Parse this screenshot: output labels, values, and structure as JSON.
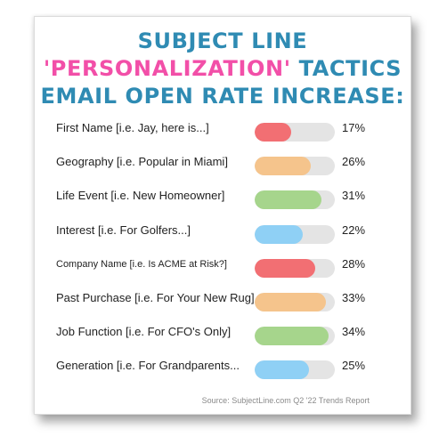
{
  "header": {
    "line1": "SUBJECT LINE",
    "line2_highlight": "'PERSONALIZATION'",
    "line2_rest": " TACTICS",
    "line3": "EMAIL OPEN RATE INCREASE:"
  },
  "source": "Source: SubjectLine.com Q2 '22 Trends Report",
  "colors": {
    "title": "#2f8bb3",
    "highlight": "#f24fa8",
    "track": "#e4e4e4"
  },
  "chart_data": {
    "type": "bar",
    "orientation": "horizontal",
    "title": "SUBJECT LINE 'PERSONALIZATION' TACTICS EMAIL OPEN RATE INCREASE:",
    "categories": [
      "First Name [i.e. Jay, here is...]",
      "Geography [i.e. Popular in Miami]",
      "Life Event [i.e. New Homeowner]",
      "Interest [i.e. For Golfers...]",
      "Company Name [i.e. Is ACME at Risk?]",
      "Past Purchase [i.e. For Your New Rug]",
      "Job Function [i.e. For CFO's Only]",
      "Generation [i.e. For Grandparents..."
    ],
    "values": [
      17,
      26,
      31,
      22,
      28,
      33,
      34,
      25
    ],
    "labels": [
      "17%",
      "26%",
      "31%",
      "22%",
      "28%",
      "33%",
      "34%",
      "25%"
    ],
    "bar_colors": [
      "#f26f73",
      "#f5c48c",
      "#a6d58c",
      "#8fd0f5",
      "#f26f73",
      "#f5c48c",
      "#a6d58c",
      "#8fd0f5"
    ],
    "xlim": [
      0,
      37
    ],
    "grid": false
  }
}
